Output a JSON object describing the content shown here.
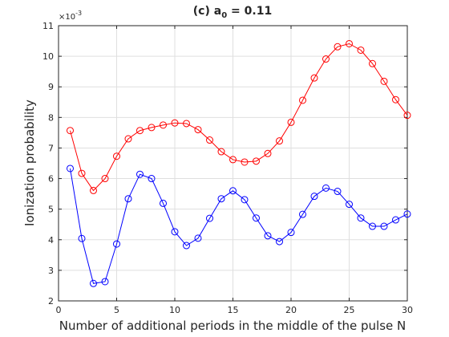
{
  "chart_data": {
    "type": "line",
    "title": "(c) a",
    "title_subscript": "0",
    "title_suffix": " = 0.11",
    "xlabel": "Number of additional periods in the middle of the pulse N",
    "ylabel": "Ionization probability",
    "y_multiplier": "×10",
    "y_multiplier_exp": "-3",
    "xlim": [
      0,
      30
    ],
    "ylim": [
      2,
      11
    ],
    "x_ticks": [
      0,
      5,
      10,
      15,
      20,
      25,
      30
    ],
    "y_ticks": [
      2,
      3,
      4,
      5,
      6,
      7,
      8,
      9,
      10,
      11
    ],
    "grid": true,
    "x": [
      1,
      2,
      3,
      4,
      5,
      6,
      7,
      8,
      9,
      10,
      11,
      12,
      13,
      14,
      15,
      16,
      17,
      18,
      19,
      20,
      21,
      22,
      23,
      24,
      25,
      26,
      27,
      28,
      29,
      30
    ],
    "series": [
      {
        "color": "#ff0000",
        "marker": "circle",
        "values": [
          7.57,
          6.17,
          5.61,
          6.0,
          6.73,
          7.3,
          7.57,
          7.67,
          7.75,
          7.82,
          7.8,
          7.6,
          7.26,
          6.88,
          6.62,
          6.54,
          6.57,
          6.82,
          7.23,
          7.84,
          8.56,
          9.29,
          9.91,
          10.31,
          10.41,
          10.2,
          9.76,
          9.18,
          8.58,
          8.07
        ]
      },
      {
        "color": "#0000ff",
        "marker": "circle",
        "values": [
          6.33,
          4.04,
          2.57,
          2.63,
          3.86,
          5.34,
          6.14,
          6.0,
          5.19,
          4.26,
          3.81,
          4.05,
          4.7,
          5.34,
          5.6,
          5.31,
          4.71,
          4.13,
          3.94,
          4.24,
          4.83,
          5.42,
          5.69,
          5.58,
          5.16,
          4.71,
          4.44,
          4.44,
          4.65,
          4.84
        ]
      }
    ]
  }
}
